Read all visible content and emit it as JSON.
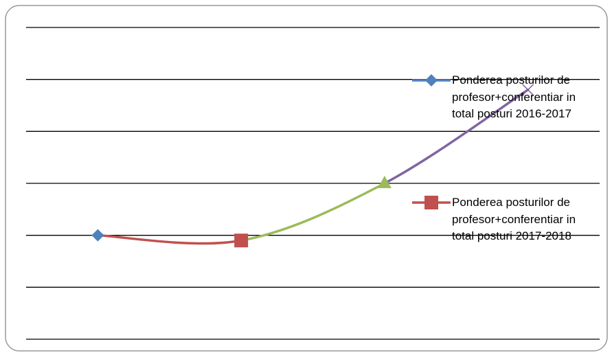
{
  "chart_data": {
    "type": "line",
    "categories": [
      "Ponderea posturilor de profesor+conferentiar in total posturi 2016-2017",
      "Ponderea posturilor de profesor+conferentiar in total posturi 2017-2018",
      null,
      null
    ],
    "series": [
      {
        "values": [
          2.0,
          1.9,
          3.0,
          4.8
        ],
        "point_colors": [
          "#4f81bd",
          "#c0504d",
          "#9bbb59",
          "#8064a2"
        ],
        "markers": [
          "diamond",
          "square",
          "triangle",
          "x"
        ]
      }
    ],
    "ylim": [
      0,
      6
    ],
    "yticks": [
      0,
      1,
      2,
      3,
      4,
      5,
      6
    ],
    "grid": true,
    "smooth": true,
    "legend": "right"
  }
}
